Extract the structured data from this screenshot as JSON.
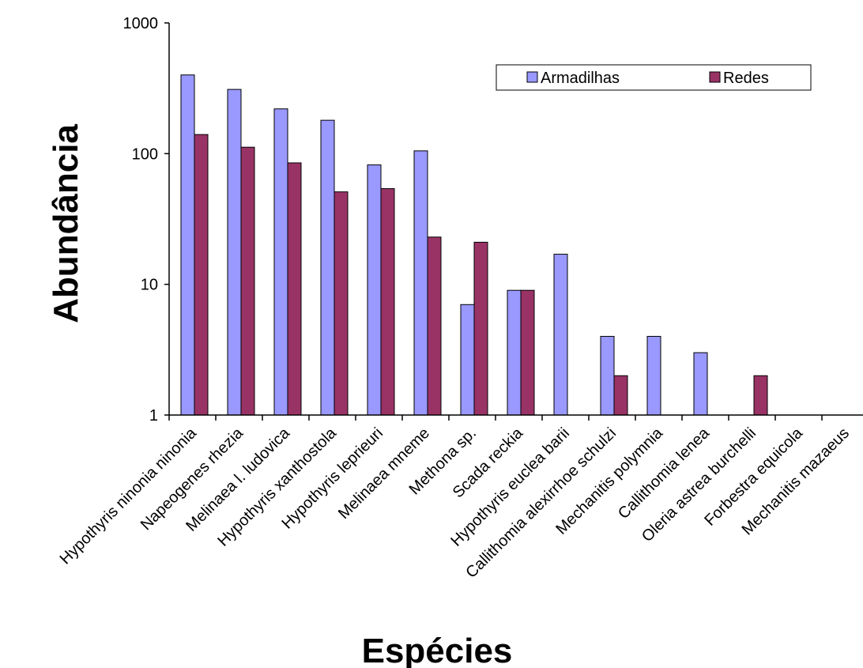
{
  "chart_data": {
    "type": "bar",
    "title": "",
    "xlabel": "Espécies",
    "ylabel": "Abundância",
    "yscale": "log",
    "ylim": [
      1,
      1000
    ],
    "yticks": [
      "1",
      "10",
      "100",
      "1000"
    ],
    "grid": false,
    "legend_position": "top-right",
    "categories": [
      "Hypothyris ninonia ninonia",
      "Napeogenes rhezia",
      "Melinaea l. ludovica",
      "Hypothyris xanthostola",
      "Hypothyris leprieuri",
      "Melinaea mneme",
      "Methona sp.",
      "Scada reckia",
      "Hypothyris euclea barii",
      "Callithomia alexirrhoe schulzi",
      "Mechanitis polymnia",
      "Callithomia lenea",
      "Oleria astrea burchelli",
      "Forbestra equicola",
      "Mechanitis mazaeus"
    ],
    "series": [
      {
        "name": "Armadilhas",
        "color": "#9999ff",
        "values": [
          400,
          310,
          220,
          180,
          82,
          105,
          7,
          9,
          17,
          4,
          4,
          3,
          null,
          null,
          null
        ]
      },
      {
        "name": "Redes",
        "color": "#993366",
        "values": [
          140,
          112,
          85,
          51,
          54,
          23,
          21,
          9,
          null,
          2,
          null,
          null,
          2,
          null,
          null
        ]
      }
    ]
  }
}
